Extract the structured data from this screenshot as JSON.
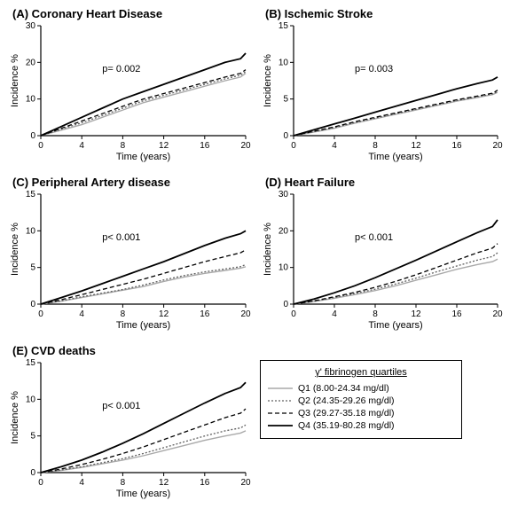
{
  "global": {
    "xlabel": "Time (years)",
    "ylabel": "Incidence %",
    "xlim": [
      0,
      20
    ],
    "xticks": [
      0,
      4,
      8,
      12,
      16,
      20
    ],
    "axis_color": "#000000",
    "background_color": "#ffffff",
    "label_fontsize": 11,
    "tick_fontsize": 10,
    "title_fontsize": 13,
    "q1_color": "#a9a9a9",
    "q2_color": "#606060",
    "q3_color": "#000000",
    "q4_color": "#000000",
    "q1_dash": "none",
    "q2_dash": "2,2",
    "q3_dash": "5,3",
    "q4_dash": "none",
    "q1_width": 1.4,
    "q2_width": 1.3,
    "q3_width": 1.3,
    "q4_width": 1.8
  },
  "legend": {
    "title": "γ' fibrinogen quartiles",
    "items": [
      {
        "label": "Q1 (8.00-24.34 mg/dl)",
        "color_key": "q1_color",
        "dash_key": "q1_dash",
        "width_key": "q1_width"
      },
      {
        "label": "Q2 (24.35-29.26 mg/dl)",
        "color_key": "q2_color",
        "dash_key": "q2_dash",
        "width_key": "q2_width"
      },
      {
        "label": "Q3 (29.27-35.18 mg/dl)",
        "color_key": "q3_color",
        "dash_key": "q3_dash",
        "width_key": "q3_width"
      },
      {
        "label": "Q4 (35.19-80.28 mg/dl)",
        "color_key": "q4_color",
        "dash_key": "q4_dash",
        "width_key": "q4_width"
      }
    ]
  },
  "panels": [
    {
      "id": "A",
      "title": "(A) Coronary Heart Disease",
      "ylim": [
        0,
        30
      ],
      "yticks": [
        0,
        10,
        20,
        30
      ],
      "pvalue": "p= 0.002",
      "series": {
        "Q1": [
          [
            0,
            0
          ],
          [
            2,
            1.5
          ],
          [
            4,
            3
          ],
          [
            6,
            5
          ],
          [
            8,
            7
          ],
          [
            10,
            9
          ],
          [
            12,
            10.5
          ],
          [
            14,
            12
          ],
          [
            16,
            13.5
          ],
          [
            18,
            15
          ],
          [
            19.5,
            16
          ],
          [
            20,
            17
          ]
        ],
        "Q2": [
          [
            0,
            0
          ],
          [
            2,
            1.8
          ],
          [
            4,
            3.5
          ],
          [
            6,
            5.5
          ],
          [
            8,
            7.5
          ],
          [
            10,
            9.5
          ],
          [
            12,
            11
          ],
          [
            14,
            12.5
          ],
          [
            16,
            14
          ],
          [
            18,
            15.5
          ],
          [
            19.5,
            16.5
          ],
          [
            20,
            17.5
          ]
        ],
        "Q3": [
          [
            0,
            0
          ],
          [
            2,
            2
          ],
          [
            4,
            4
          ],
          [
            6,
            6
          ],
          [
            8,
            8
          ],
          [
            10,
            10
          ],
          [
            12,
            11.5
          ],
          [
            14,
            13
          ],
          [
            16,
            14.5
          ],
          [
            18,
            16
          ],
          [
            19.5,
            17
          ],
          [
            20,
            18
          ]
        ],
        "Q4": [
          [
            0,
            0
          ],
          [
            2,
            2.5
          ],
          [
            4,
            5
          ],
          [
            6,
            7.5
          ],
          [
            8,
            10
          ],
          [
            10,
            12
          ],
          [
            12,
            14
          ],
          [
            14,
            16
          ],
          [
            16,
            18
          ],
          [
            18,
            20
          ],
          [
            19.5,
            21
          ],
          [
            20,
            22.5
          ]
        ]
      }
    },
    {
      "id": "B",
      "title": "(B) Ischemic Stroke",
      "ylim": [
        0,
        15
      ],
      "yticks": [
        0,
        5,
        10,
        15
      ],
      "pvalue": "p= 0.003",
      "series": {
        "Q1": [
          [
            0,
            0
          ],
          [
            2,
            0.5
          ],
          [
            4,
            1
          ],
          [
            6,
            1.7
          ],
          [
            8,
            2.3
          ],
          [
            10,
            2.9
          ],
          [
            12,
            3.5
          ],
          [
            14,
            4.1
          ],
          [
            16,
            4.7
          ],
          [
            18,
            5.2
          ],
          [
            19.5,
            5.6
          ],
          [
            20,
            5.9
          ]
        ],
        "Q2": [
          [
            0,
            0
          ],
          [
            2,
            0.55
          ],
          [
            4,
            1.1
          ],
          [
            6,
            1.8
          ],
          [
            8,
            2.4
          ],
          [
            10,
            3.0
          ],
          [
            12,
            3.6
          ],
          [
            14,
            4.2
          ],
          [
            16,
            4.8
          ],
          [
            18,
            5.3
          ],
          [
            19.5,
            5.7
          ],
          [
            20,
            6.0
          ]
        ],
        "Q3": [
          [
            0,
            0
          ],
          [
            2,
            0.6
          ],
          [
            4,
            1.2
          ],
          [
            6,
            1.9
          ],
          [
            8,
            2.5
          ],
          [
            10,
            3.1
          ],
          [
            12,
            3.7
          ],
          [
            14,
            4.3
          ],
          [
            16,
            4.9
          ],
          [
            18,
            5.4
          ],
          [
            19.5,
            5.8
          ],
          [
            20,
            6.2
          ]
        ],
        "Q4": [
          [
            0,
            0
          ],
          [
            2,
            0.8
          ],
          [
            4,
            1.6
          ],
          [
            6,
            2.4
          ],
          [
            8,
            3.2
          ],
          [
            10,
            4.0
          ],
          [
            12,
            4.8
          ],
          [
            14,
            5.6
          ],
          [
            16,
            6.4
          ],
          [
            18,
            7.1
          ],
          [
            19.5,
            7.6
          ],
          [
            20,
            8.0
          ]
        ]
      }
    },
    {
      "id": "C",
      "title": "(C) Peripheral Artery disease",
      "ylim": [
        0,
        15
      ],
      "yticks": [
        0,
        5,
        10,
        15
      ],
      "pvalue": "p< 0.001",
      "series": {
        "Q1": [
          [
            0,
            0
          ],
          [
            2,
            0.4
          ],
          [
            4,
            0.9
          ],
          [
            6,
            1.4
          ],
          [
            8,
            1.9
          ],
          [
            10,
            2.4
          ],
          [
            12,
            3.1
          ],
          [
            14,
            3.7
          ],
          [
            16,
            4.2
          ],
          [
            18,
            4.6
          ],
          [
            19.5,
            4.9
          ],
          [
            20,
            5.1
          ]
        ],
        "Q2": [
          [
            0,
            0
          ],
          [
            2,
            0.45
          ],
          [
            4,
            1.0
          ],
          [
            6,
            1.5
          ],
          [
            8,
            2.0
          ],
          [
            10,
            2.6
          ],
          [
            12,
            3.3
          ],
          [
            14,
            3.9
          ],
          [
            16,
            4.4
          ],
          [
            18,
            4.8
          ],
          [
            19.5,
            5.1
          ],
          [
            20,
            5.4
          ]
        ],
        "Q3": [
          [
            0,
            0
          ],
          [
            2,
            0.6
          ],
          [
            4,
            1.3
          ],
          [
            6,
            2.0
          ],
          [
            8,
            2.7
          ],
          [
            10,
            3.4
          ],
          [
            12,
            4.2
          ],
          [
            14,
            5.0
          ],
          [
            16,
            5.8
          ],
          [
            18,
            6.5
          ],
          [
            19.5,
            7.0
          ],
          [
            20,
            7.4
          ]
        ],
        "Q4": [
          [
            0,
            0
          ],
          [
            2,
            0.9
          ],
          [
            4,
            1.8
          ],
          [
            6,
            2.8
          ],
          [
            8,
            3.8
          ],
          [
            10,
            4.8
          ],
          [
            12,
            5.8
          ],
          [
            14,
            6.9
          ],
          [
            16,
            8.0
          ],
          [
            18,
            9.0
          ],
          [
            19.5,
            9.6
          ],
          [
            20,
            10.0
          ]
        ]
      }
    },
    {
      "id": "D",
      "title": "(D) Heart Failure",
      "ylim": [
        0,
        30
      ],
      "yticks": [
        0,
        10,
        20,
        30
      ],
      "pvalue": "p< 0.001",
      "series": {
        "Q1": [
          [
            0,
            0
          ],
          [
            2,
            0.7
          ],
          [
            4,
            1.6
          ],
          [
            6,
            2.6
          ],
          [
            8,
            3.7
          ],
          [
            10,
            5.0
          ],
          [
            12,
            6.5
          ],
          [
            14,
            8.0
          ],
          [
            16,
            9.5
          ],
          [
            18,
            10.8
          ],
          [
            19.5,
            11.6
          ],
          [
            20,
            12.3
          ]
        ],
        "Q2": [
          [
            0,
            0
          ],
          [
            2,
            0.8
          ],
          [
            4,
            1.8
          ],
          [
            6,
            2.9
          ],
          [
            8,
            4.1
          ],
          [
            10,
            5.5
          ],
          [
            12,
            7.1
          ],
          [
            14,
            8.8
          ],
          [
            16,
            10.4
          ],
          [
            18,
            12.0
          ],
          [
            19.5,
            13.0
          ],
          [
            20,
            14.0
          ]
        ],
        "Q3": [
          [
            0,
            0
          ],
          [
            2,
            0.9
          ],
          [
            4,
            2.0
          ],
          [
            6,
            3.2
          ],
          [
            8,
            4.6
          ],
          [
            10,
            6.2
          ],
          [
            12,
            8.0
          ],
          [
            14,
            10.0
          ],
          [
            16,
            12.0
          ],
          [
            18,
            14.0
          ],
          [
            19.5,
            15.3
          ],
          [
            20,
            16.5
          ]
        ],
        "Q4": [
          [
            0,
            0
          ],
          [
            2,
            1.4
          ],
          [
            4,
            3.1
          ],
          [
            6,
            5.0
          ],
          [
            8,
            7.2
          ],
          [
            10,
            9.6
          ],
          [
            12,
            12.0
          ],
          [
            14,
            14.5
          ],
          [
            16,
            17.0
          ],
          [
            18,
            19.5
          ],
          [
            19.5,
            21.2
          ],
          [
            20,
            23.0
          ]
        ]
      }
    },
    {
      "id": "E",
      "title": "(E) CVD deaths",
      "ylim": [
        0,
        15
      ],
      "yticks": [
        0,
        5,
        10,
        15
      ],
      "pvalue": "p< 0.001",
      "series": {
        "Q1": [
          [
            0,
            0
          ],
          [
            2,
            0.3
          ],
          [
            4,
            0.7
          ],
          [
            6,
            1.2
          ],
          [
            8,
            1.7
          ],
          [
            10,
            2.3
          ],
          [
            12,
            3.0
          ],
          [
            14,
            3.7
          ],
          [
            16,
            4.4
          ],
          [
            18,
            5.0
          ],
          [
            19.5,
            5.4
          ],
          [
            20,
            5.7
          ]
        ],
        "Q2": [
          [
            0,
            0
          ],
          [
            2,
            0.35
          ],
          [
            4,
            0.8
          ],
          [
            6,
            1.35
          ],
          [
            8,
            1.9
          ],
          [
            10,
            2.6
          ],
          [
            12,
            3.4
          ],
          [
            14,
            4.2
          ],
          [
            16,
            5.0
          ],
          [
            18,
            5.7
          ],
          [
            19.5,
            6.1
          ],
          [
            20,
            6.5
          ]
        ],
        "Q3": [
          [
            0,
            0
          ],
          [
            2,
            0.5
          ],
          [
            4,
            1.1
          ],
          [
            6,
            1.8
          ],
          [
            8,
            2.6
          ],
          [
            10,
            3.5
          ],
          [
            12,
            4.5
          ],
          [
            14,
            5.5
          ],
          [
            16,
            6.5
          ],
          [
            18,
            7.5
          ],
          [
            19.5,
            8.1
          ],
          [
            20,
            8.7
          ]
        ],
        "Q4": [
          [
            0,
            0
          ],
          [
            2,
            0.8
          ],
          [
            4,
            1.7
          ],
          [
            6,
            2.8
          ],
          [
            8,
            4.0
          ],
          [
            10,
            5.3
          ],
          [
            12,
            6.7
          ],
          [
            14,
            8.1
          ],
          [
            16,
            9.5
          ],
          [
            18,
            10.8
          ],
          [
            19.5,
            11.6
          ],
          [
            20,
            12.3
          ]
        ]
      }
    }
  ]
}
